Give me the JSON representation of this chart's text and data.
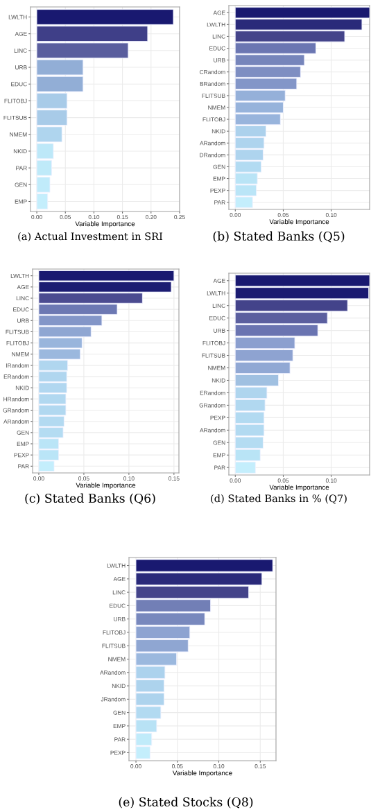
{
  "chart_data": [
    {
      "type": "bar",
      "orientation": "horizontal",
      "title": "(a) Actual Investment in SRI",
      "xlabel": "Variable Importance",
      "grid": true,
      "legend": false,
      "categories": [
        "LWLTH",
        "AGE",
        "LINC",
        "URB",
        "EDUC",
        "FLITOBJ",
        "FLITSUB",
        "NMEM",
        "NKID",
        "PAR",
        "GEN",
        "EMP"
      ],
      "values": [
        0.239,
        0.194,
        0.16,
        0.081,
        0.081,
        0.053,
        0.053,
        0.044,
        0.029,
        0.026,
        0.023,
        0.019
      ],
      "colors": [
        "#191970",
        "#3f3f88",
        "#5a5e9e",
        "#92aed6",
        "#92aed6",
        "#a8cbe8",
        "#a8cbe8",
        "#afd5ee",
        "#bde8f8",
        "#bfeaf9",
        "#c0ebfa",
        "#c4eefc"
      ],
      "xlim": [
        -0.011,
        0.25
      ],
      "xticks": [
        {
          "value": 0,
          "label": "0.00"
        },
        {
          "value": 0.05,
          "label": "0.05"
        },
        {
          "value": 0.1,
          "label": "0.10"
        },
        {
          "value": 0.15,
          "label": "0.15"
        },
        {
          "value": 0.2,
          "label": "0.20"
        },
        {
          "value": 0.25,
          "label": "0.25"
        }
      ]
    },
    {
      "type": "bar",
      "orientation": "horizontal",
      "title": "(b) Stated Banks (Q5)",
      "xlabel": "Variable Importance",
      "grid": true,
      "legend": false,
      "categories": [
        "AGE",
        "LWLTH",
        "LINC",
        "EDUC",
        "URB",
        "CRandom",
        "BRandom",
        "FLITSUB",
        "NMEM",
        "FLITOBJ",
        "NKID",
        "ARandom",
        "DRandom",
        "GEN",
        "EMP",
        "PEXP",
        "PAR"
      ],
      "values": [
        0.14,
        0.132,
        0.114,
        0.084,
        0.072,
        0.068,
        0.064,
        0.052,
        0.05,
        0.047,
        0.032,
        0.03,
        0.029,
        0.027,
        0.023,
        0.022,
        0.018
      ],
      "colors": [
        "#191970",
        "#2a2a7a",
        "#44448a",
        "#6b76b2",
        "#7685bb",
        "#7e8ec2",
        "#8396c8",
        "#95b0d9",
        "#97b3db",
        "#98b4dc",
        "#acd1ec",
        "#aed4ee",
        "#aed4ee",
        "#b2dbf2",
        "#b9e4f6",
        "#bae5f7",
        "#c4eefc"
      ],
      "xlim": [
        -0.0067,
        0.14
      ],
      "xticks": [
        {
          "value": 0,
          "label": "0.00"
        },
        {
          "value": 0.05,
          "label": "0.05"
        },
        {
          "value": 0.1,
          "label": "0.10"
        }
      ]
    },
    {
      "type": "bar",
      "orientation": "horizontal",
      "title": "(c) Stated Banks (Q6)",
      "xlabel": "Variable Importance",
      "grid": true,
      "legend": false,
      "categories": [
        "LWLTH",
        "AGE",
        "LINC",
        "EDUC",
        "URB",
        "FLITSUB",
        "FLITOBJ",
        "NMEM",
        "IRandom",
        "ERandom",
        "NKID",
        "HRandom",
        "GRandom",
        "ARandom",
        "GEN",
        "EMP",
        "PEXP",
        "PAR"
      ],
      "values": [
        0.15,
        0.147,
        0.115,
        0.087,
        0.07,
        0.058,
        0.048,
        0.046,
        0.032,
        0.031,
        0.031,
        0.03,
        0.03,
        0.028,
        0.027,
        0.022,
        0.022,
        0.017
      ],
      "colors": [
        "#191970",
        "#1c1c72",
        "#4b4b90",
        "#6c78b3",
        "#8396c8",
        "#8fa6d2",
        "#99b5dc",
        "#9bb8de",
        "#b0d6ef",
        "#b0d6ef",
        "#b1d7f0",
        "#b1d8f0",
        "#b1d8f0",
        "#b3daf1",
        "#b4dcf2",
        "#bae5f7",
        "#bae5f7",
        "#c4eefc"
      ],
      "xlim": [
        -0.0069,
        0.1555
      ],
      "xticks": [
        {
          "value": 0,
          "label": "0.00"
        },
        {
          "value": 0.05,
          "label": "0.05"
        },
        {
          "value": 0.1,
          "label": "0.10"
        },
        {
          "value": 0.15,
          "label": "0.15"
        }
      ]
    },
    {
      "type": "bar",
      "orientation": "horizontal",
      "title": "(d) Stated Banks in % (Q7)",
      "xlabel": "Variable Importance",
      "grid": true,
      "legend": false,
      "categories": [
        "AGE",
        "LWLTH",
        "LINC",
        "EDUC",
        "URB",
        "FLITOBJ",
        "FLITSUB",
        "NMEM",
        "NKID",
        "ERandom",
        "GRandom",
        "PEXP",
        "ARandom",
        "GEN",
        "EMP",
        "PAR"
      ],
      "values": [
        0.14,
        0.139,
        0.117,
        0.096,
        0.086,
        0.062,
        0.06,
        0.057,
        0.045,
        0.033,
        0.031,
        0.03,
        0.03,
        0.029,
        0.026,
        0.021
      ],
      "colors": [
        "#191970",
        "#1a1a71",
        "#43438a",
        "#5b5f9f",
        "#6a74b1",
        "#8b9fcf",
        "#8ea3d1",
        "#91a8d4",
        "#a0c0e1",
        "#afd5ee",
        "#b1d8f0",
        "#b2daf1",
        "#b2daf1",
        "#b4dcf2",
        "#b9e4f6",
        "#c4eefc"
      ],
      "xlim": [
        -0.0067,
        0.14
      ],
      "xticks": [
        {
          "value": 0,
          "label": "0.00"
        },
        {
          "value": 0.05,
          "label": "0.05"
        },
        {
          "value": 0.1,
          "label": "0.10"
        }
      ]
    },
    {
      "type": "bar",
      "orientation": "horizontal",
      "title": "(e) Stated Stocks (Q8)",
      "xlabel": "Variable Importance",
      "grid": true,
      "legend": false,
      "categories": [
        "LWLTH",
        "AGE",
        "LINC",
        "EDUC",
        "URB",
        "FLITOBJ",
        "FLITSUB",
        "NMEM",
        "ARandom",
        "NKID",
        "JRandom",
        "GEN",
        "EMP",
        "PAR",
        "PEXP"
      ],
      "values": [
        0.165,
        0.152,
        0.136,
        0.09,
        0.083,
        0.065,
        0.063,
        0.049,
        0.035,
        0.034,
        0.034,
        0.03,
        0.025,
        0.019,
        0.017
      ],
      "colors": [
        "#191970",
        "#2a2a7a",
        "#44448a",
        "#727fb6",
        "#7888bd",
        "#8da3d1",
        "#8fa6d2",
        "#9bb8de",
        "#acd2ed",
        "#add3ed",
        "#add3ed",
        "#b2daf1",
        "#b8e2f5",
        "#c0ebfa",
        "#c4eefc"
      ],
      "xlim": [
        -0.0084,
        0.169
      ],
      "xticks": [
        {
          "value": 0,
          "label": "0.00"
        },
        {
          "value": 0.05,
          "label": "0.05"
        },
        {
          "value": 0.1,
          "label": "0.10"
        },
        {
          "value": 0.15,
          "label": "0.15"
        }
      ]
    }
  ]
}
